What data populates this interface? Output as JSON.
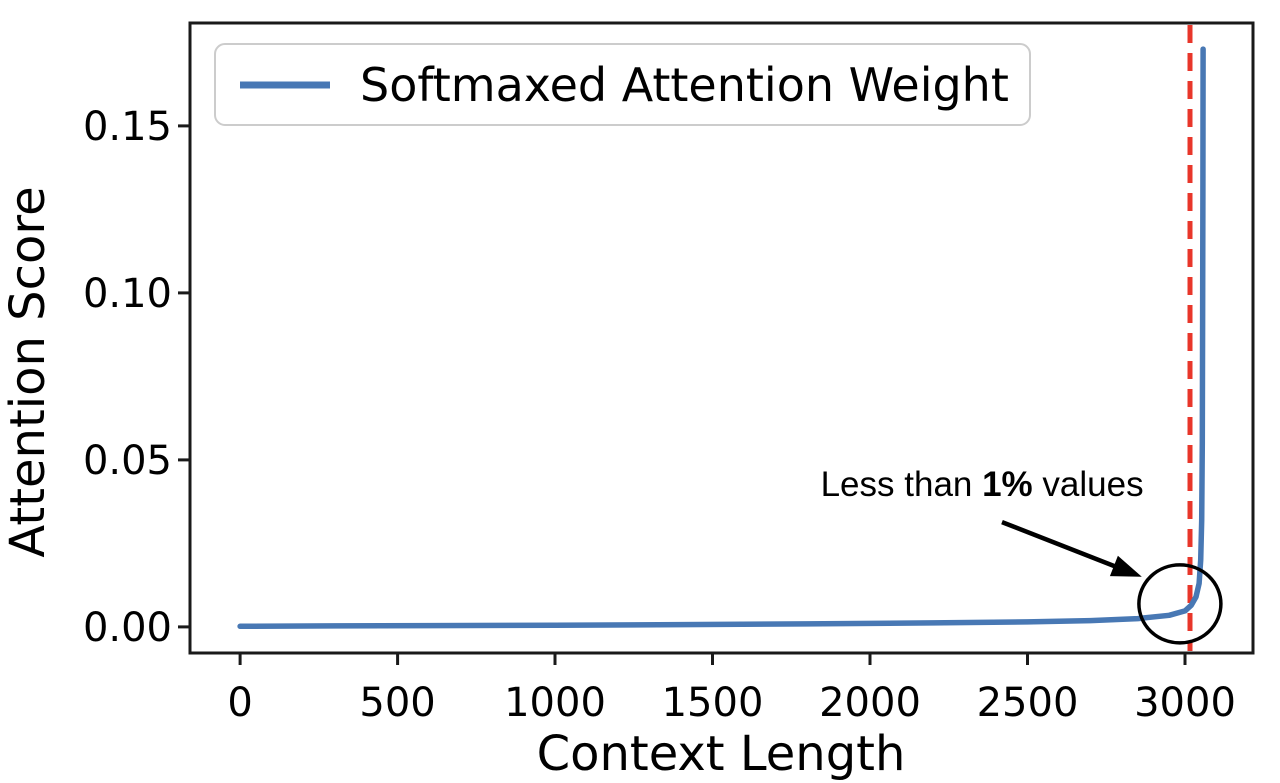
{
  "figure": {
    "background": "#ffffff"
  },
  "chart_data": {
    "type": "line",
    "title": "",
    "xlabel": "Context Length",
    "ylabel": "Attention Score",
    "xlim": [
      -159,
      3216
    ],
    "ylim": [
      -0.0078,
      0.1808
    ],
    "grid": false,
    "x_ticks": [
      0,
      500,
      1000,
      1500,
      2000,
      2500,
      3000
    ],
    "x_tick_labels": [
      "0",
      "500",
      "1000",
      "1500",
      "2000",
      "2500",
      "3000"
    ],
    "y_ticks": [
      0.0,
      0.05,
      0.1,
      0.15
    ],
    "y_tick_labels": [
      "0.00",
      "0.05",
      "0.10",
      "0.15"
    ],
    "legend": {
      "position": "upper-left",
      "entries": [
        {
          "label": "Softmaxed Attention Weight",
          "color": "#4878b4"
        }
      ]
    },
    "series": [
      {
        "name": "Softmaxed Attention Weight",
        "color": "#4878b4",
        "points": [
          [
            0,
            0.0002
          ],
          [
            300,
            0.0003
          ],
          [
            600,
            0.0004
          ],
          [
            1000,
            0.0005
          ],
          [
            1400,
            0.0007
          ],
          [
            1800,
            0.0009
          ],
          [
            2200,
            0.0012
          ],
          [
            2500,
            0.0015
          ],
          [
            2700,
            0.0019
          ],
          [
            2850,
            0.0025
          ],
          [
            2950,
            0.0035
          ],
          [
            3000,
            0.0048
          ],
          [
            3020,
            0.0065
          ],
          [
            3035,
            0.009
          ],
          [
            3045,
            0.013
          ],
          [
            3050,
            0.02
          ],
          [
            3053,
            0.032
          ],
          [
            3055,
            0.055
          ],
          [
            3056,
            0.09
          ],
          [
            3057,
            0.13
          ],
          [
            3057.5,
            0.173
          ]
        ]
      }
    ],
    "vline": {
      "x": 3016,
      "color": "#e8362a",
      "style": "dashed"
    },
    "annotation": {
      "parts": [
        "Less than ",
        "1%",
        " values"
      ],
      "color": "#000000",
      "text_xy": [
        2356,
        0.0392
      ],
      "arrow_from": [
        2419,
        0.0314
      ],
      "arrow_to": [
        2863,
        0.015
      ],
      "circle_center": [
        2984,
        0.0069
      ],
      "circle_radius_px": [
        41,
        39
      ]
    }
  }
}
